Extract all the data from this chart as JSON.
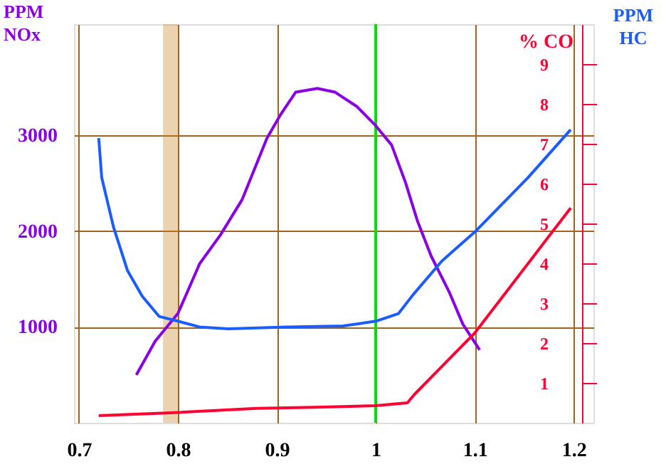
{
  "chart_data": {
    "type": "line",
    "ylabel": "PPM NOx",
    "y2label": "% CO",
    "annotations": [
      "PPM HC"
    ],
    "x": [
      0.758,
      0.777,
      0.8,
      0.822,
      0.843,
      0.865,
      0.89,
      0.904,
      0.919,
      0.941,
      0.959,
      0.981,
      1.0,
      1.016,
      1.03,
      1.042,
      1.056,
      1.074,
      1.088,
      1.105
    ],
    "series": [
      {
        "color": "#8a00e6",
        "values": [
          500,
          850,
          1140,
          1660,
          1960,
          2330,
          2970,
          3220,
          3450,
          3490,
          3450,
          3300,
          3100,
          2900,
          2510,
          2110,
          1740,
          1370,
          1030,
          760
        ]
      },
      {
        "color": "#1a5cff",
        "x": [
          0.72,
          0.723,
          0.735,
          0.749,
          0.764,
          0.781,
          0.8,
          0.822,
          0.851,
          0.909,
          0.967,
          1.0,
          1.023,
          1.038,
          1.067,
          1.1,
          1.154,
          1.197
        ],
        "values": [
          2970,
          2560,
          2040,
          1590,
          1320,
          1110,
          1060,
          1000,
          980,
          1000,
          1010,
          1060,
          1140,
          1340,
          1690,
          1990,
          2560,
          3060
        ]
      },
      {
        "color": "#ff0033",
        "axis": "y2",
        "x": [
          0.72,
          0.793,
          0.88,
          0.938,
          1.0,
          1.032,
          1.039,
          1.1,
          1.197
        ],
        "values": [
          0.18,
          0.25,
          0.36,
          0.39,
          0.43,
          0.5,
          0.71,
          2.25,
          5.39
        ]
      }
    ],
    "xlim": [
      0.695,
      1.22
    ],
    "xticks": [
      0.7,
      0.8,
      0.9,
      1,
      1.1,
      1.2
    ],
    "ylim": [
      0,
      4160
    ],
    "yticks": [
      1000,
      2000,
      3000
    ],
    "y2lim": [
      0,
      10
    ],
    "y2ticks": [
      1,
      2,
      3,
      4,
      5,
      6,
      7,
      8,
      9
    ],
    "ref_lines": [
      {
        "axis": "x",
        "value": 1,
        "color": "#00e000"
      }
    ],
    "bands": [
      {
        "axis": "x",
        "from": 0.785,
        "to": 0.8,
        "color": "#c8801e"
      }
    ],
    "grid": true
  }
}
